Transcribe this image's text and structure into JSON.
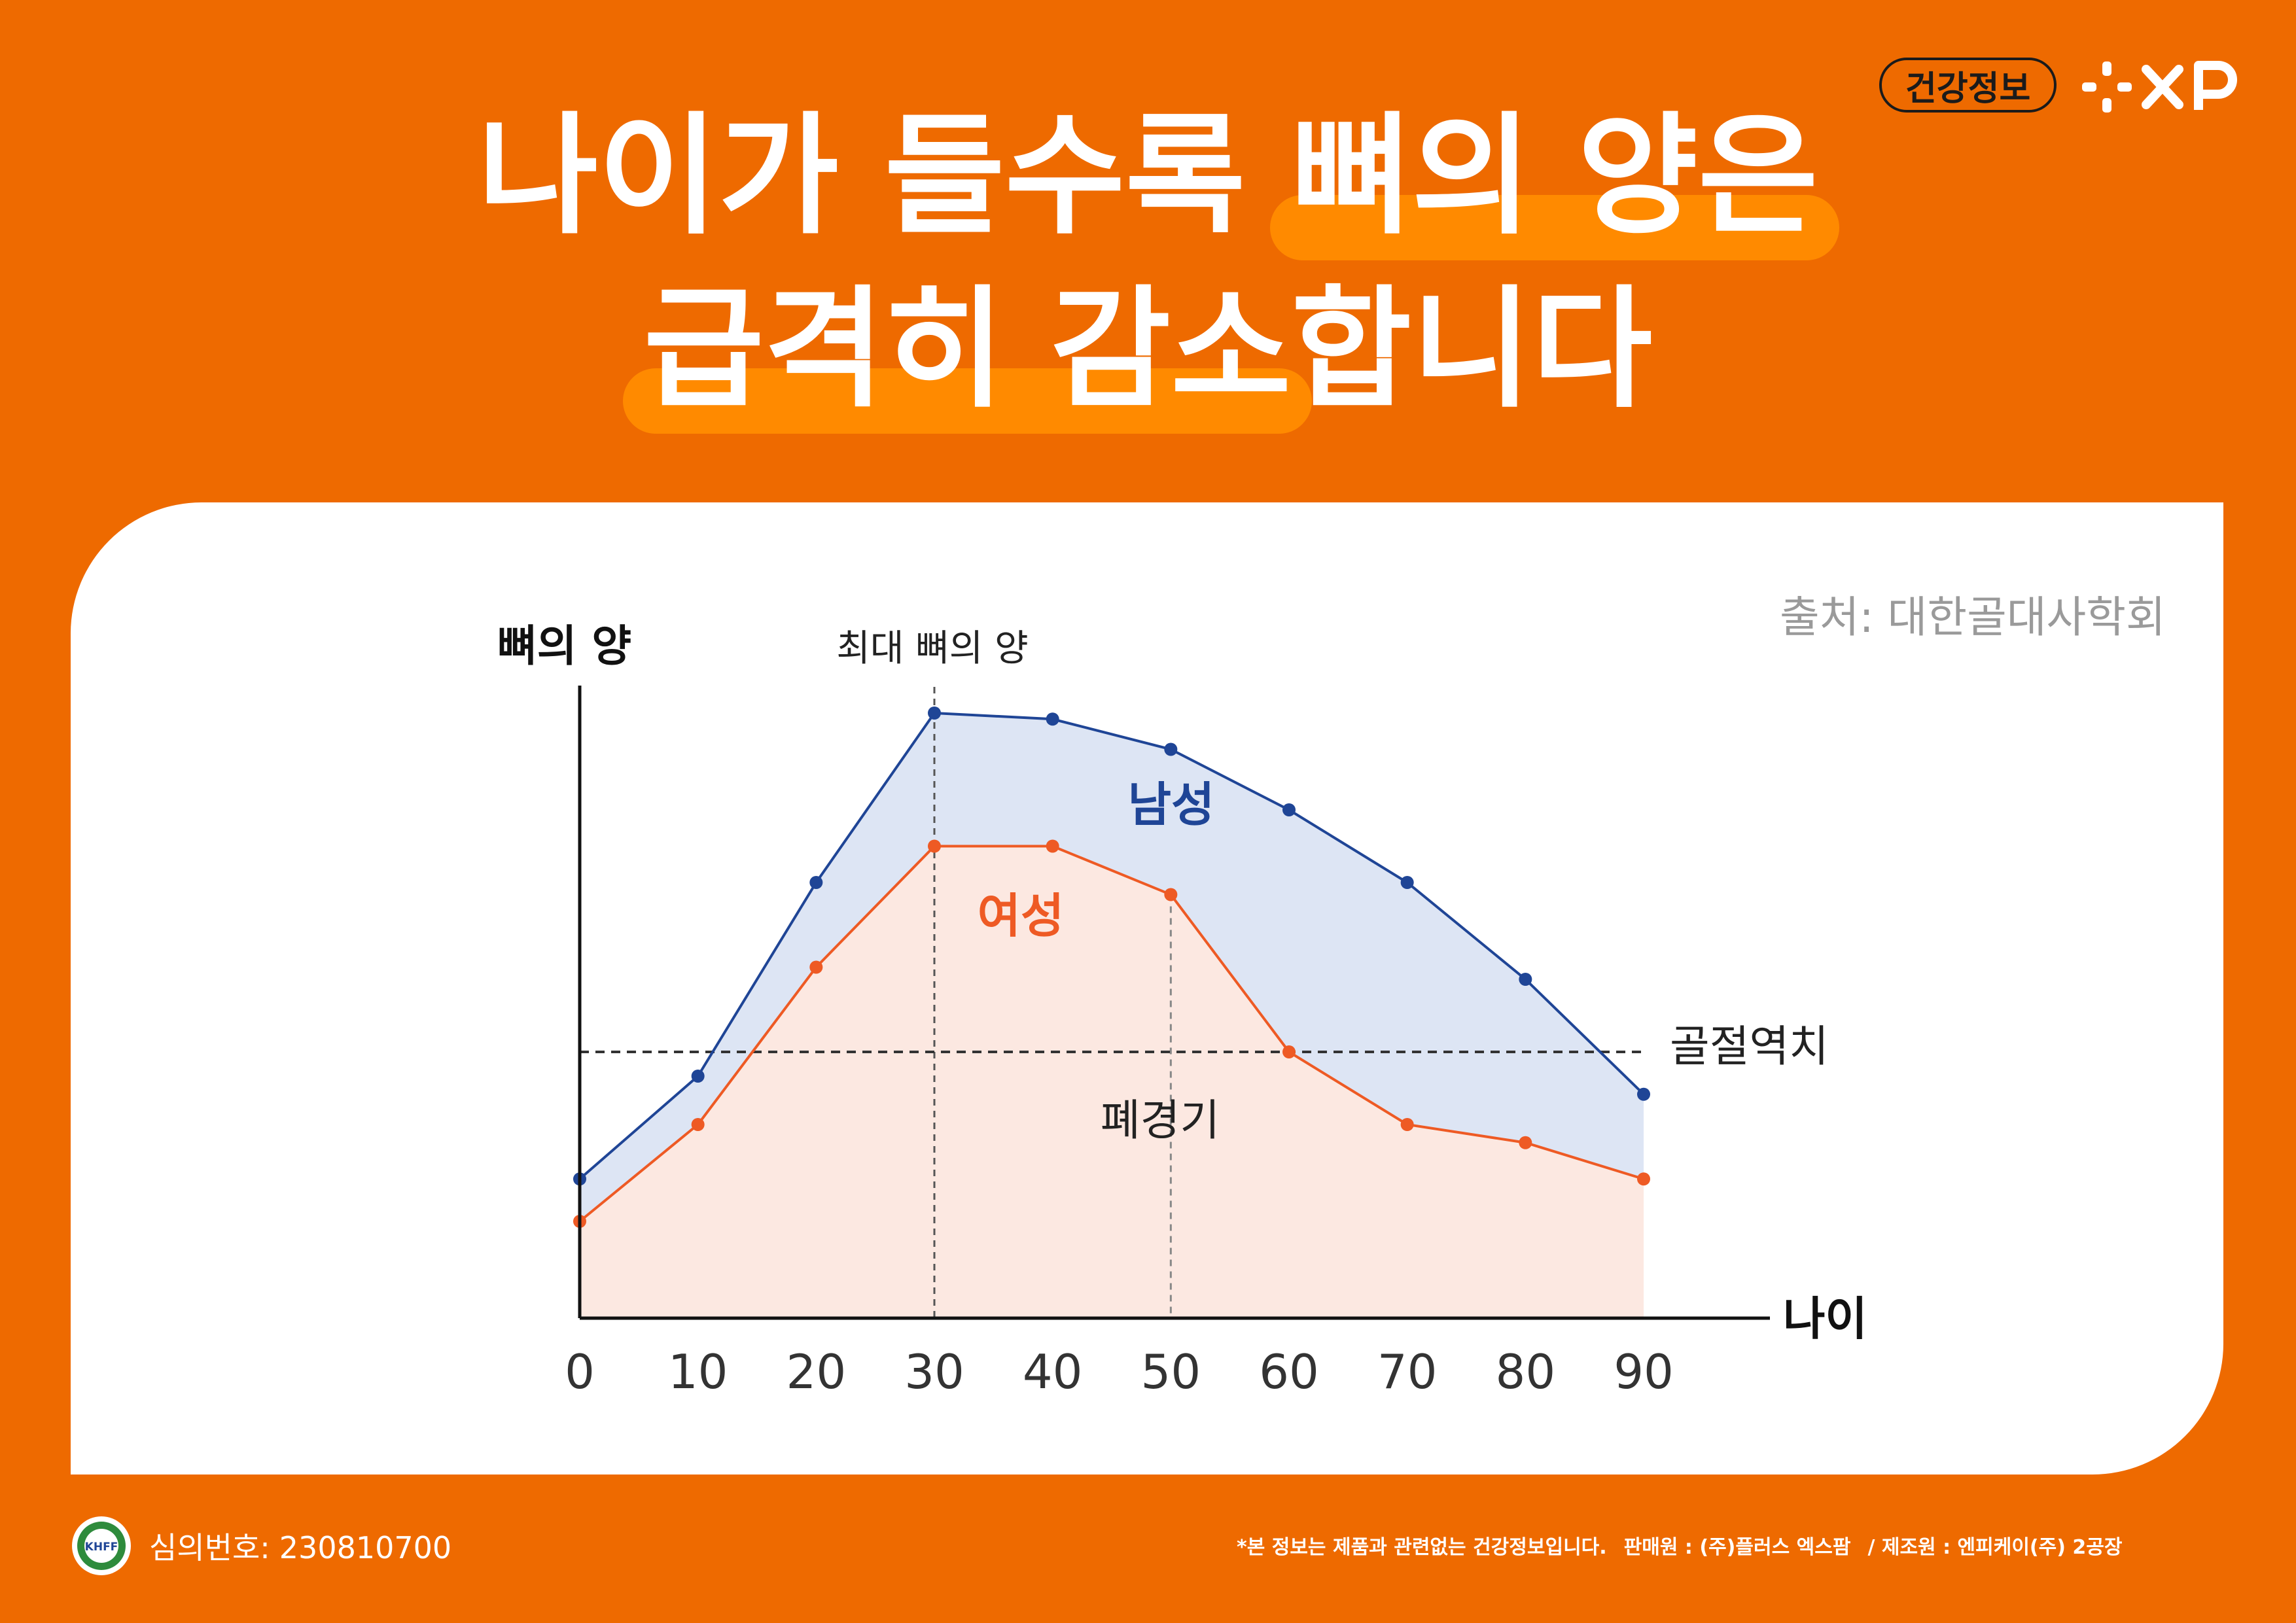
{
  "header": {
    "badge": "건강정보",
    "logo_text": "+XP",
    "title_line1_plain": "나이가 들수록 ",
    "title_line1_highlight": "뼈의 양은",
    "title_line2_highlight": "급격히 감소",
    "title_line2_plain": "합니다"
  },
  "source": "출처: 대한골대사학회",
  "chart_data": {
    "type": "area",
    "ylabel": "뼈의 양",
    "xlabel": "나이",
    "x": [
      0,
      10,
      20,
      30,
      40,
      50,
      60,
      70,
      80,
      90
    ],
    "xlim": [
      0,
      90
    ],
    "ylim": [
      0,
      100
    ],
    "series": [
      {
        "name": "남성",
        "color": "#1F4596",
        "fill": "#DDE5F4",
        "values": [
          23,
          40,
          72,
          100,
          99,
          94,
          84,
          72,
          56,
          37
        ]
      },
      {
        "name": "여성",
        "color": "#EE5A24",
        "fill": "#FCE8E1",
        "values": [
          16,
          32,
          58,
          78,
          78,
          70,
          44,
          32,
          29,
          23
        ]
      }
    ],
    "annotations": {
      "peak_label": "최대 뼈의 양",
      "peak_x": 30,
      "menopause_label": "폐경기",
      "menopause_x": 50,
      "fracture_label": "골절역치",
      "fracture_y": 44
    },
    "grid": false
  },
  "footer": {
    "review_label": "심의번호:",
    "review_number": "230810700",
    "logo_text": "KHFF",
    "disclaimer": "*본 정보는 제품과 관련없는 건강정보입니다.",
    "seller": "판매원 : (주)플러스 엑스팜",
    "maker": "/ 제조원 : 엔피케이(주) 2공장"
  },
  "colors": {
    "background": "#EE6A00",
    "highlight": "#FF8A00",
    "male": "#1F4596",
    "female": "#EE5A24"
  }
}
